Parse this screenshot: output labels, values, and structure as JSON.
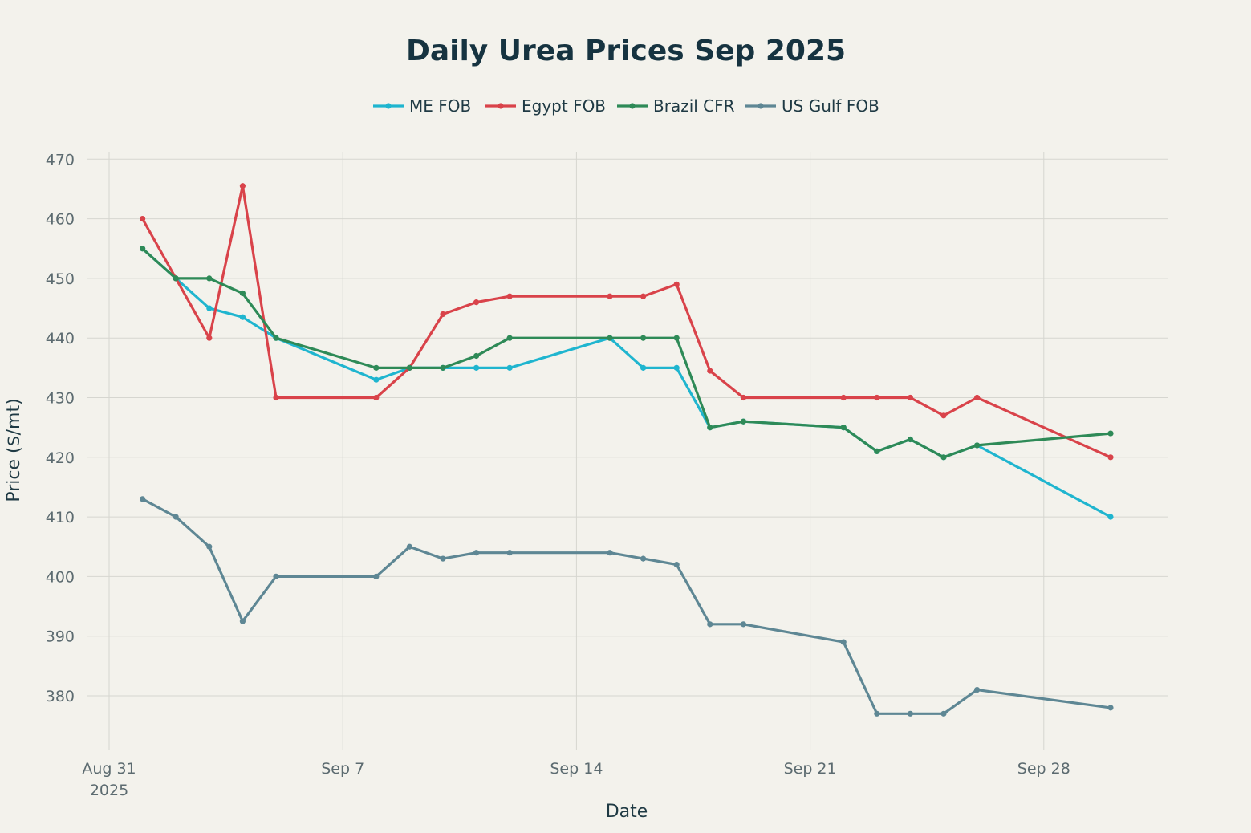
{
  "chart_data": {
    "type": "line",
    "title": "Daily Urea Prices Sep 2025",
    "xlabel": "Date",
    "ylabel": "Price ($/mt)",
    "xlim": [
      "2025-08-31",
      "2025-10-01"
    ],
    "ylim": [
      370,
      472
    ],
    "grid": true,
    "legend_position": "top-center",
    "x_ticks": [
      {
        "date": "2025-08-31",
        "label": "Aug 31",
        "sublabel": "2025"
      },
      {
        "date": "2025-09-07",
        "label": "Sep 7",
        "sublabel": ""
      },
      {
        "date": "2025-09-14",
        "label": "Sep 14",
        "sublabel": ""
      },
      {
        "date": "2025-09-21",
        "label": "Sep 21",
        "sublabel": ""
      },
      {
        "date": "2025-09-28",
        "label": "Sep 28",
        "sublabel": ""
      }
    ],
    "y_ticks": [
      380,
      390,
      400,
      410,
      420,
      430,
      440,
      450,
      460,
      470
    ],
    "series": [
      {
        "name": "ME FOB",
        "color": "#1fb5cf",
        "points": [
          [
            "2025-09-01",
            455
          ],
          [
            "2025-09-02",
            450
          ],
          [
            "2025-09-03",
            445
          ],
          [
            "2025-09-04",
            443.5
          ],
          [
            "2025-09-05",
            440
          ],
          [
            "2025-09-08",
            433
          ],
          [
            "2025-09-09",
            435
          ],
          [
            "2025-09-10",
            435
          ],
          [
            "2025-09-11",
            435
          ],
          [
            "2025-09-12",
            435
          ],
          [
            "2025-09-15",
            440
          ],
          [
            "2025-09-16",
            435
          ],
          [
            "2025-09-17",
            435
          ],
          [
            "2025-09-18",
            425
          ],
          [
            "2025-09-19",
            426
          ],
          [
            "2025-09-22",
            425
          ],
          [
            "2025-09-23",
            421
          ],
          [
            "2025-09-24",
            423
          ],
          [
            "2025-09-25",
            420
          ],
          [
            "2025-09-26",
            422
          ],
          [
            "2025-09-30",
            410
          ]
        ]
      },
      {
        "name": "Egypt FOB",
        "color": "#d9434a",
        "points": [
          [
            "2025-09-01",
            460
          ],
          [
            "2025-09-02",
            450
          ],
          [
            "2025-09-03",
            440
          ],
          [
            "2025-09-04",
            465.5
          ],
          [
            "2025-09-05",
            430
          ],
          [
            "2025-09-08",
            430
          ],
          [
            "2025-09-09",
            435
          ],
          [
            "2025-09-10",
            444
          ],
          [
            "2025-09-11",
            446
          ],
          [
            "2025-09-12",
            447
          ],
          [
            "2025-09-15",
            447
          ],
          [
            "2025-09-16",
            447
          ],
          [
            "2025-09-17",
            449
          ],
          [
            "2025-09-18",
            434.5
          ],
          [
            "2025-09-19",
            430
          ],
          [
            "2025-09-22",
            430
          ],
          [
            "2025-09-23",
            430
          ],
          [
            "2025-09-24",
            430
          ],
          [
            "2025-09-25",
            427
          ],
          [
            "2025-09-26",
            430
          ],
          [
            "2025-09-30",
            420
          ]
        ]
      },
      {
        "name": "Brazil CFR",
        "color": "#2e8a57",
        "points": [
          [
            "2025-09-01",
            455
          ],
          [
            "2025-09-02",
            450
          ],
          [
            "2025-09-03",
            450
          ],
          [
            "2025-09-04",
            447.5
          ],
          [
            "2025-09-05",
            440
          ],
          [
            "2025-09-08",
            435
          ],
          [
            "2025-09-09",
            435
          ],
          [
            "2025-09-10",
            435
          ],
          [
            "2025-09-11",
            437
          ],
          [
            "2025-09-12",
            440
          ],
          [
            "2025-09-15",
            440
          ],
          [
            "2025-09-16",
            440
          ],
          [
            "2025-09-17",
            440
          ],
          [
            "2025-09-18",
            425
          ],
          [
            "2025-09-19",
            426
          ],
          [
            "2025-09-22",
            425
          ],
          [
            "2025-09-23",
            421
          ],
          [
            "2025-09-24",
            423
          ],
          [
            "2025-09-25",
            420
          ],
          [
            "2025-09-26",
            422
          ],
          [
            "2025-09-30",
            424
          ]
        ]
      },
      {
        "name": "US Gulf FOB",
        "color": "#5e8794",
        "points": [
          [
            "2025-09-01",
            413
          ],
          [
            "2025-09-02",
            410
          ],
          [
            "2025-09-03",
            405
          ],
          [
            "2025-09-04",
            392.5
          ],
          [
            "2025-09-05",
            400
          ],
          [
            "2025-09-08",
            400
          ],
          [
            "2025-09-09",
            405
          ],
          [
            "2025-09-10",
            403
          ],
          [
            "2025-09-11",
            404
          ],
          [
            "2025-09-12",
            404
          ],
          [
            "2025-09-15",
            404
          ],
          [
            "2025-09-16",
            403
          ],
          [
            "2025-09-17",
            402
          ],
          [
            "2025-09-18",
            392
          ],
          [
            "2025-09-19",
            392
          ],
          [
            "2025-09-22",
            389
          ],
          [
            "2025-09-23",
            377
          ],
          [
            "2025-09-24",
            377
          ],
          [
            "2025-09-25",
            377
          ],
          [
            "2025-09-26",
            381
          ],
          [
            "2025-09-30",
            378
          ]
        ]
      }
    ]
  }
}
